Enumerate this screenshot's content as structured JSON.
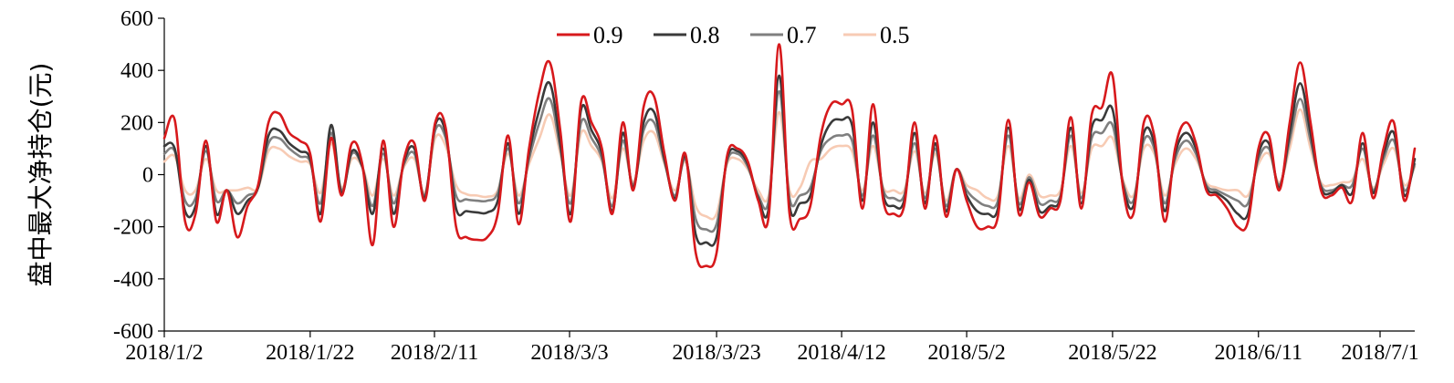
{
  "chart_data": {
    "type": "line",
    "title": "",
    "xlabel": "",
    "ylabel": "盘中最大净持仓(元)",
    "ylim": [
      -600,
      600
    ],
    "y_ticks": [
      600,
      400,
      200,
      0,
      -200,
      -400,
      -600
    ],
    "x_tick_labels": [
      "2018/1/2",
      "2018/1/22",
      "2018/2/11",
      "2018/3/3",
      "2018/3/23",
      "2018/4/12",
      "2018/5/2",
      "2018/5/22",
      "2018/6/11",
      "2018/7/1"
    ],
    "legend_position": "top-center",
    "grid": false,
    "x": [
      "2018/1/2",
      "2018/1/3",
      "2018/1/4",
      "2018/1/5",
      "2018/1/8",
      "2018/1/9",
      "2018/1/10",
      "2018/1/11",
      "2018/1/12",
      "2018/1/15",
      "2018/1/16",
      "2018/1/17",
      "2018/1/18",
      "2018/1/19",
      "2018/1/22",
      "2018/1/23",
      "2018/1/24",
      "2018/1/25",
      "2018/1/26",
      "2018/1/29",
      "2018/1/30",
      "2018/1/31",
      "2018/2/1",
      "2018/2/2",
      "2018/2/5",
      "2018/2/6",
      "2018/2/7",
      "2018/2/8",
      "2018/2/9",
      "2018/2/12",
      "2018/2/13",
      "2018/2/14",
      "2018/2/22",
      "2018/2/23",
      "2018/2/26",
      "2018/2/27",
      "2018/2/28",
      "2018/3/1",
      "2018/3/2",
      "2018/3/5",
      "2018/3/6",
      "2018/3/7",
      "2018/3/8",
      "2018/3/9",
      "2018/3/12",
      "2018/3/13",
      "2018/3/14",
      "2018/3/15",
      "2018/3/16",
      "2018/3/19",
      "2018/3/20",
      "2018/3/21",
      "2018/3/22",
      "2018/3/23",
      "2018/3/26",
      "2018/3/27",
      "2018/3/28",
      "2018/3/29",
      "2018/3/30",
      "2018/4/2",
      "2018/4/3",
      "2018/4/4",
      "2018/4/9",
      "2018/4/10",
      "2018/4/11",
      "2018/4/12",
      "2018/4/13",
      "2018/4/16",
      "2018/4/17",
      "2018/4/18",
      "2018/4/19",
      "2018/4/20",
      "2018/4/23",
      "2018/4/24",
      "2018/4/25",
      "2018/4/26",
      "2018/4/27",
      "2018/5/2",
      "2018/5/3",
      "2018/5/4",
      "2018/5/7",
      "2018/5/8",
      "2018/5/9",
      "2018/5/10",
      "2018/5/11",
      "2018/5/14",
      "2018/5/15",
      "2018/5/16",
      "2018/5/17",
      "2018/5/18",
      "2018/5/21",
      "2018/5/22",
      "2018/5/23",
      "2018/5/24",
      "2018/5/25",
      "2018/5/28",
      "2018/5/29",
      "2018/5/30",
      "2018/5/31",
      "2018/6/1",
      "2018/6/4",
      "2018/6/5",
      "2018/6/6",
      "2018/6/7",
      "2018/6/8",
      "2018/6/11",
      "2018/6/12",
      "2018/6/13",
      "2018/6/14",
      "2018/6/15",
      "2018/6/19",
      "2018/6/20",
      "2018/6/21",
      "2018/6/22",
      "2018/6/25",
      "2018/6/26",
      "2018/6/27",
      "2018/6/28",
      "2018/6/29",
      "2018/7/2",
      "2018/7/3"
    ],
    "series": [
      {
        "name": "0.9",
        "color": "#d7191c",
        "values": [
          140,
          210,
          -180,
          -150,
          130,
          -180,
          -60,
          -240,
          -120,
          -40,
          200,
          235,
          160,
          130,
          80,
          -180,
          140,
          -80,
          120,
          40,
          -270,
          130,
          -200,
          60,
          120,
          -100,
          200,
          180,
          -200,
          -240,
          -250,
          -240,
          -150,
          150,
          -190,
          100,
          320,
          430,
          170,
          -180,
          280,
          200,
          100,
          -150,
          200,
          -60,
          260,
          300,
          80,
          -100,
          80,
          -300,
          -350,
          -300,
          70,
          100,
          50,
          -100,
          -160,
          500,
          -150,
          -170,
          -120,
          150,
          270,
          270,
          250,
          -130,
          270,
          -100,
          -150,
          -120,
          200,
          -130,
          150,
          -160,
          20,
          -100,
          -200,
          -200,
          -160,
          210,
          -150,
          -30,
          -160,
          -130,
          -100,
          220,
          -130,
          230,
          260,
          380,
          -50,
          -150,
          200,
          150,
          -180,
          100,
          200,
          120,
          -60,
          -80,
          -130,
          -200,
          -180,
          100,
          150,
          -60,
          200,
          430,
          200,
          -60,
          -80,
          -50,
          -100,
          160,
          -90,
          100,
          200,
          -100,
          100
        ]
      },
      {
        "name": "0.8",
        "color": "#3a3a3a",
        "values": [
          110,
          100,
          -140,
          -120,
          110,
          -150,
          -60,
          -150,
          -100,
          -50,
          150,
          170,
          120,
          90,
          60,
          -150,
          190,
          -70,
          90,
          30,
          -150,
          100,
          -150,
          50,
          100,
          -90,
          190,
          160,
          -130,
          -140,
          -145,
          -145,
          -100,
          120,
          -150,
          80,
          250,
          350,
          120,
          -150,
          250,
          170,
          80,
          -140,
          160,
          -50,
          200,
          240,
          60,
          -90,
          70,
          -230,
          -260,
          -240,
          60,
          90,
          40,
          -90,
          -130,
          380,
          -120,
          -110,
          -80,
          110,
          200,
          210,
          190,
          -100,
          200,
          -80,
          -120,
          -100,
          160,
          -110,
          120,
          -140,
          20,
          -80,
          -140,
          -150,
          -130,
          180,
          -130,
          -20,
          -140,
          -120,
          -90,
          180,
          -110,
          180,
          210,
          250,
          -40,
          -120,
          160,
          120,
          -140,
          80,
          160,
          100,
          -50,
          -70,
          -100,
          -150,
          -150,
          80,
          120,
          -50,
          160,
          350,
          160,
          -50,
          -70,
          -40,
          -70,
          120,
          -70,
          80,
          160,
          -80,
          60
        ]
      },
      {
        "name": "0.7",
        "color": "#7f7f7f",
        "values": [
          80,
          90,
          -100,
          -90,
          90,
          -100,
          -60,
          -110,
          -80,
          -50,
          120,
          140,
          100,
          70,
          50,
          -110,
          160,
          -60,
          80,
          30,
          -120,
          80,
          -110,
          40,
          80,
          -80,
          170,
          140,
          -80,
          -95,
          -100,
          -100,
          -70,
          100,
          -110,
          60,
          200,
          290,
          100,
          -110,
          200,
          140,
          60,
          -120,
          130,
          -40,
          170,
          200,
          50,
          -80,
          60,
          -170,
          -210,
          -190,
          50,
          80,
          30,
          -80,
          -100,
          320,
          -90,
          -80,
          -50,
          90,
          140,
          150,
          130,
          -80,
          150,
          -60,
          -90,
          -80,
          120,
          -90,
          100,
          -120,
          20,
          -60,
          -100,
          -120,
          -100,
          150,
          -110,
          -10,
          -110,
          -100,
          -80,
          150,
          -90,
          140,
          160,
          190,
          -30,
          -100,
          130,
          100,
          -110,
          60,
          130,
          80,
          -40,
          -60,
          -80,
          -100,
          -110,
          60,
          100,
          -40,
          130,
          290,
          130,
          -40,
          -60,
          -40,
          -40,
          100,
          -60,
          60,
          130,
          -60,
          40
        ]
      },
      {
        "name": "0.5",
        "color": "#f7cbb4",
        "values": [
          50,
          70,
          -60,
          -60,
          60,
          -60,
          -60,
          -60,
          -50,
          -50,
          90,
          100,
          70,
          50,
          40,
          -70,
          120,
          -50,
          60,
          30,
          -80,
          60,
          -80,
          30,
          60,
          -70,
          140,
          110,
          -40,
          -75,
          -80,
          -85,
          -60,
          80,
          -80,
          40,
          140,
          230,
          80,
          -80,
          160,
          110,
          50,
          -90,
          100,
          -30,
          130,
          160,
          40,
          -60,
          50,
          -120,
          -160,
          -150,
          40,
          60,
          20,
          -60,
          -80,
          240,
          -60,
          -50,
          50,
          60,
          100,
          110,
          90,
          -60,
          110,
          -50,
          -60,
          -60,
          90,
          -70,
          80,
          -100,
          20,
          -40,
          -60,
          -90,
          -80,
          110,
          -90,
          0,
          -80,
          -80,
          -60,
          110,
          -70,
          100,
          110,
          140,
          -20,
          -80,
          100,
          80,
          -80,
          40,
          100,
          60,
          -30,
          -50,
          -60,
          -60,
          -80,
          40,
          80,
          -30,
          100,
          250,
          100,
          -30,
          -40,
          -30,
          -20,
          60,
          -50,
          40,
          100,
          -40,
          30
        ]
      }
    ]
  }
}
